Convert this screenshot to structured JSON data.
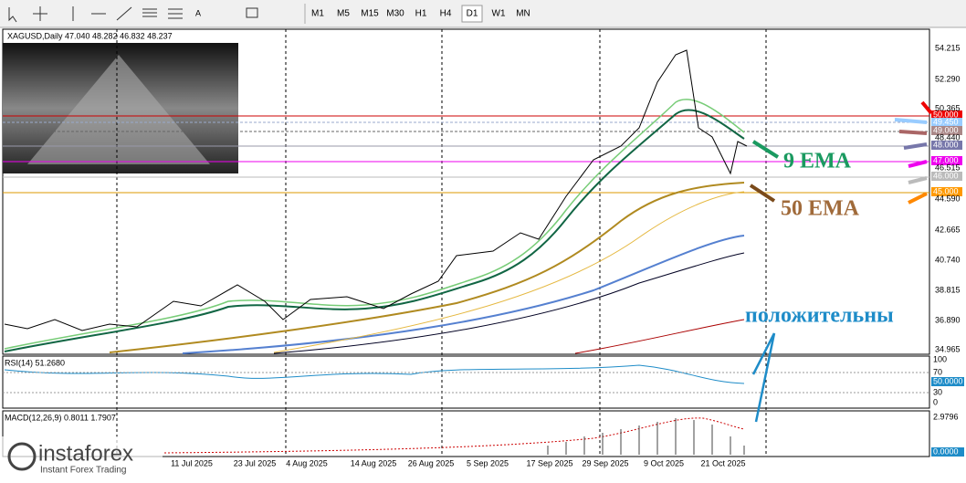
{
  "toolbar": {
    "timeframes": [
      "M1",
      "M5",
      "M15",
      "M30",
      "H1",
      "H4",
      "D1",
      "W1",
      "MN"
    ]
  },
  "chart": {
    "symbol": "XAGUSD,Daily  47.040 48.282 46.832 48.237",
    "price_axis": [
      "54.215",
      "52.290",
      "50.365",
      "48.440",
      "46.515",
      "44.590",
      "42.665",
      "40.740",
      "38.815",
      "36.890",
      "34.965"
    ],
    "levels": [
      "50.000",
      "49.450",
      "49.000",
      "48.000",
      "47.000",
      "46.000",
      "45.000"
    ],
    "dates": [
      "11 Jul 2025",
      "23 Jul 2025",
      "4 Aug 2025",
      "14 Aug 2025",
      "26 Aug 2025",
      "5 Sep 2025",
      "17 Sep 2025",
      "29 Sep 2025",
      "9 Oct 2025",
      "21 Oct 2025"
    ],
    "annotations": {
      "ema9": "9 EMA",
      "ema50": "50 EMA",
      "note": "положительны"
    }
  },
  "rsi": {
    "label": "RSI(14) 51.2680",
    "axis": [
      "100",
      "70",
      "50.0000",
      "30",
      "0"
    ]
  },
  "macd": {
    "label": "MACD(12,26,9) 0.8011 1.7907",
    "axis": [
      "2.9796",
      "0.0000"
    ]
  },
  "logo": {
    "name": "instaforex",
    "tagline": "Instant Forex Trading"
  }
}
